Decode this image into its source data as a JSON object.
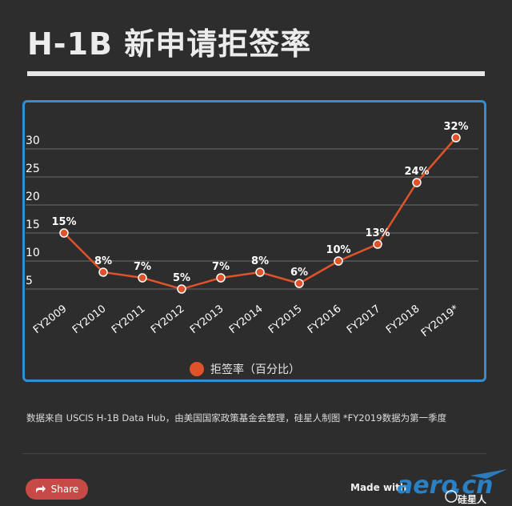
{
  "page": {
    "title": "H-1B 新申请拒签率",
    "source_note": "数据来自 USCIS H-1B Data Hub，由美国国家政策基金会整理，硅星人制图 *FY2019数据为第一季度",
    "share_label": "Share",
    "made_with_label": "Made with",
    "watermark_label": "硅星人"
  },
  "colors": {
    "accent": "#e0522a",
    "frame": "#2f8fd0",
    "background": "#2d2d2d",
    "share_button": "#c84a46"
  },
  "chart_data": {
    "type": "line",
    "title": "",
    "xlabel": "",
    "ylabel": "",
    "categories": [
      "FY2009",
      "FY2010",
      "FY2011",
      "FY2012",
      "FY2013",
      "FY2014",
      "FY2015",
      "FY2016",
      "FY2017",
      "FY2018",
      "FY2019*"
    ],
    "series": [
      {
        "name": "拒签率（百分比）",
        "values": [
          15,
          8,
          7,
          5,
          7,
          8,
          6,
          10,
          13,
          24,
          32
        ],
        "labels": [
          "15%",
          "8%",
          "7%",
          "5%",
          "7%",
          "8%",
          "6%",
          "10%",
          "13%",
          "24%",
          "32%"
        ]
      }
    ],
    "yticks": [
      "5",
      "10",
      "15",
      "20",
      "25",
      "30"
    ],
    "ylim": [
      3,
      34
    ],
    "grid": true,
    "legend_position": "bottom-center"
  }
}
